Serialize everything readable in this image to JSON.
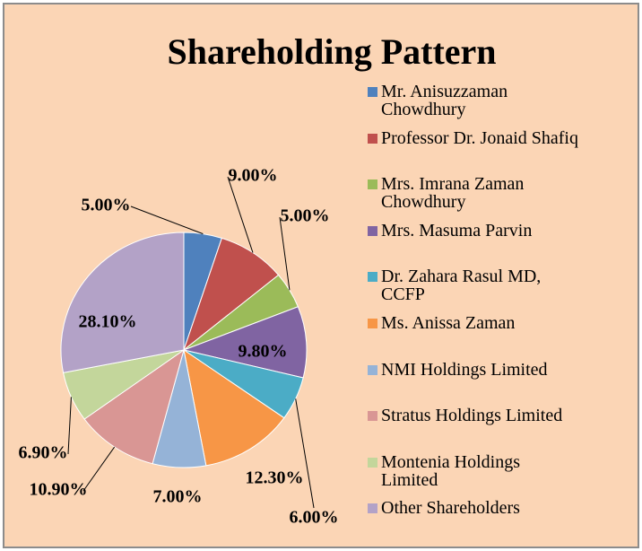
{
  "chart_data": {
    "type": "pie",
    "title": "Shareholding Pattern",
    "categories": [
      "Mr. Anisuzzaman Chowdhury",
      "Professor Dr. Jonaid Shafiq",
      "Mrs. Imrana Zaman Chowdhury",
      "Mrs. Masuma Parvin",
      "Dr. Zahara Rasul MD, CCFP",
      "Ms. Anissa Zaman",
      "NMI Holdings Limited",
      "Stratus Holdings Limited",
      "Montenia Holdings Limited",
      "Other Shareholders"
    ],
    "values": [
      5,
      9,
      5,
      9.8,
      6,
      12.3,
      7,
      10.9,
      6.9,
      28.1
    ],
    "value_labels": [
      "5.00%",
      "9.00%",
      "5.00%",
      "9.80%",
      "6.00%",
      "12.30%",
      "7.00%",
      "10.90%",
      "6.90%",
      "28.10%"
    ],
    "colors": [
      "#4f81bd",
      "#c0504d",
      "#9bbb59",
      "#8064a2",
      "#4bacc6",
      "#f79646",
      "#95b3d7",
      "#d99694",
      "#c3d69b",
      "#b3a2c7"
    ],
    "legend": "right"
  }
}
